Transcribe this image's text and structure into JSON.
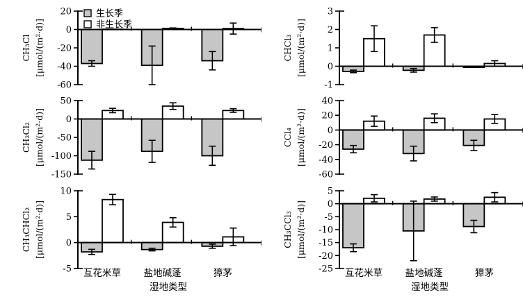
{
  "figure": {
    "x_axis_title": "湿地类型",
    "categories": [
      "互花米草",
      "盐地碱蓬",
      "獐茅"
    ],
    "legend": {
      "items": [
        {
          "label": "生长季",
          "swatch": "growing"
        },
        {
          "label": "非生长季",
          "swatch": "nongrowing"
        }
      ]
    },
    "colors": {
      "growing_fill": "#c6c6c6",
      "nongrowing_fill": "#ffffff",
      "line": "#000000",
      "background": "#ffffff"
    }
  },
  "chart_data": [
    {
      "type": "bar",
      "panel": "top-left",
      "compound": "CH₃Cl",
      "unit": "[μmol/(m²·d)]",
      "ylim": [
        -60,
        20
      ],
      "yticks": [
        20,
        0,
        -20,
        -40,
        -60
      ],
      "categories": [
        "互花米草",
        "盐地碱蓬",
        "獐茅"
      ],
      "series": [
        {
          "name": "生长季",
          "values": [
            -37,
            -39,
            -34
          ],
          "errors": [
            3,
            21,
            10
          ]
        },
        {
          "name": "非生长季",
          "values": [
            0.3,
            1.2,
            1.0
          ],
          "errors": [
            0,
            0.5,
            6
          ]
        }
      ],
      "show_legend": true,
      "show_x_labels": false
    },
    {
      "type": "bar",
      "panel": "top-right",
      "compound": "CHCl₃",
      "unit": "[μmol/(m²·d)]",
      "ylim": [
        -1,
        3
      ],
      "yticks": [
        3,
        2,
        1,
        0,
        -1
      ],
      "categories": [
        "互花米草",
        "盐地碱蓬",
        "獐茅"
      ],
      "series": [
        {
          "name": "生长季",
          "values": [
            -0.28,
            -0.22,
            -0.06
          ],
          "errors": [
            0.07,
            0.1,
            0
          ]
        },
        {
          "name": "非生长季",
          "values": [
            1.5,
            1.7,
            0.15
          ],
          "errors": [
            0.7,
            0.4,
            0.15
          ]
        }
      ],
      "show_legend": false,
      "show_x_labels": false
    },
    {
      "type": "bar",
      "panel": "middle-left",
      "compound": "CH₂Cl₂",
      "unit": "[μmol/(m²·d)]",
      "ylim": [
        -150,
        50
      ],
      "yticks": [
        50,
        0,
        -50,
        -100,
        -150
      ],
      "categories": [
        "互花米草",
        "盐地碱蓬",
        "獐茅"
      ],
      "series": [
        {
          "name": "生长季",
          "values": [
            -112,
            -88,
            -100
          ],
          "errors": [
            24,
            30,
            26
          ]
        },
        {
          "name": "非生长季",
          "values": [
            23,
            35,
            23
          ],
          "errors": [
            6,
            9,
            5
          ]
        }
      ],
      "show_legend": false,
      "show_x_labels": false
    },
    {
      "type": "bar",
      "panel": "middle-right",
      "compound": "CCl₄",
      "unit": "[μmol/(m²·d)]",
      "ylim": [
        -60,
        40
      ],
      "yticks": [
        40,
        20,
        0,
        -20,
        -40,
        -60
      ],
      "categories": [
        "互花米草",
        "盐地碱蓬",
        "獐茅"
      ],
      "series": [
        {
          "name": "生长季",
          "values": [
            -26,
            -32,
            -21
          ],
          "errors": [
            5,
            10,
            7
          ]
        },
        {
          "name": "非生长季",
          "values": [
            12,
            16,
            15
          ],
          "errors": [
            7,
            6,
            6
          ]
        }
      ],
      "show_legend": false,
      "show_x_labels": false
    },
    {
      "type": "bar",
      "panel": "bottom-left",
      "compound": "CH₃CHCl₂",
      "unit": "[μmol/(m²·d)]",
      "ylim": [
        -5,
        10
      ],
      "yticks": [
        10,
        5,
        0,
        -5
      ],
      "categories": [
        "互花米草",
        "盐地碱蓬",
        "獐茅"
      ],
      "series": [
        {
          "name": "生长季",
          "values": [
            -1.8,
            -1.35,
            -0.7
          ],
          "errors": [
            0.5,
            0.25,
            0.4
          ]
        },
        {
          "name": "非生长季",
          "values": [
            8.3,
            3.9,
            1.1
          ],
          "errors": [
            1.0,
            0.9,
            1.7
          ]
        }
      ],
      "show_legend": false,
      "show_x_labels": true
    },
    {
      "type": "bar",
      "panel": "bottom-right",
      "compound": "CH₃CCl₃",
      "unit": "[μmol/(m²·d)]",
      "ylim": [
        -25,
        5
      ],
      "yticks": [
        5,
        0,
        -5,
        -10,
        -15,
        -20,
        -25
      ],
      "categories": [
        "互花米草",
        "盐地碱蓬",
        "獐茅"
      ],
      "series": [
        {
          "name": "生长季",
          "values": [
            -17,
            -10.5,
            -8.8
          ],
          "errors": [
            1.5,
            11.5,
            2.4
          ]
        },
        {
          "name": "非生长季",
          "values": [
            2.1,
            1.8,
            2.5
          ],
          "errors": [
            1.4,
            0.8,
            1.8
          ]
        }
      ],
      "show_legend": false,
      "show_x_labels": true
    }
  ]
}
